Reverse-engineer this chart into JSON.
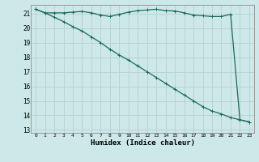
{
  "xlabel": "Humidex (Indice chaleur)",
  "bg_color": "#cce8e8",
  "grid_major_color": "#aaaaaa",
  "grid_minor_color": "#bbcccc",
  "line_color": "#1a6b5a",
  "xlim": [
    -0.5,
    23.5
  ],
  "ylim": [
    12.8,
    21.6
  ],
  "yticks": [
    13,
    14,
    15,
    16,
    17,
    18,
    19,
    20,
    21
  ],
  "xticks": [
    0,
    1,
    2,
    3,
    4,
    5,
    6,
    7,
    8,
    9,
    10,
    11,
    12,
    13,
    14,
    15,
    16,
    17,
    18,
    19,
    20,
    21,
    22,
    23
  ],
  "series1_x": [
    0,
    1,
    2,
    3,
    4,
    5,
    6,
    7,
    8,
    9,
    10,
    11,
    12,
    13,
    14,
    15,
    16,
    17,
    18,
    19,
    20,
    21,
    22,
    23
  ],
  "series1_y": [
    21.3,
    21.05,
    21.05,
    21.05,
    21.1,
    21.15,
    21.05,
    20.9,
    20.8,
    20.95,
    21.1,
    21.2,
    21.25,
    21.3,
    21.2,
    21.18,
    21.05,
    20.9,
    20.85,
    20.8,
    20.8,
    20.95,
    13.7,
    13.55
  ],
  "series2_x": [
    0,
    1,
    2,
    3,
    4,
    5,
    6,
    7,
    8,
    9,
    10,
    11,
    12,
    13,
    14,
    15,
    16,
    17,
    18,
    19,
    20,
    21,
    22,
    23
  ],
  "series2_y": [
    21.3,
    21.05,
    20.75,
    20.45,
    20.1,
    19.8,
    19.4,
    19.0,
    18.55,
    18.15,
    17.8,
    17.4,
    17.0,
    16.6,
    16.2,
    15.8,
    15.4,
    15.0,
    14.6,
    14.3,
    14.1,
    13.85,
    13.7,
    13.55
  ]
}
